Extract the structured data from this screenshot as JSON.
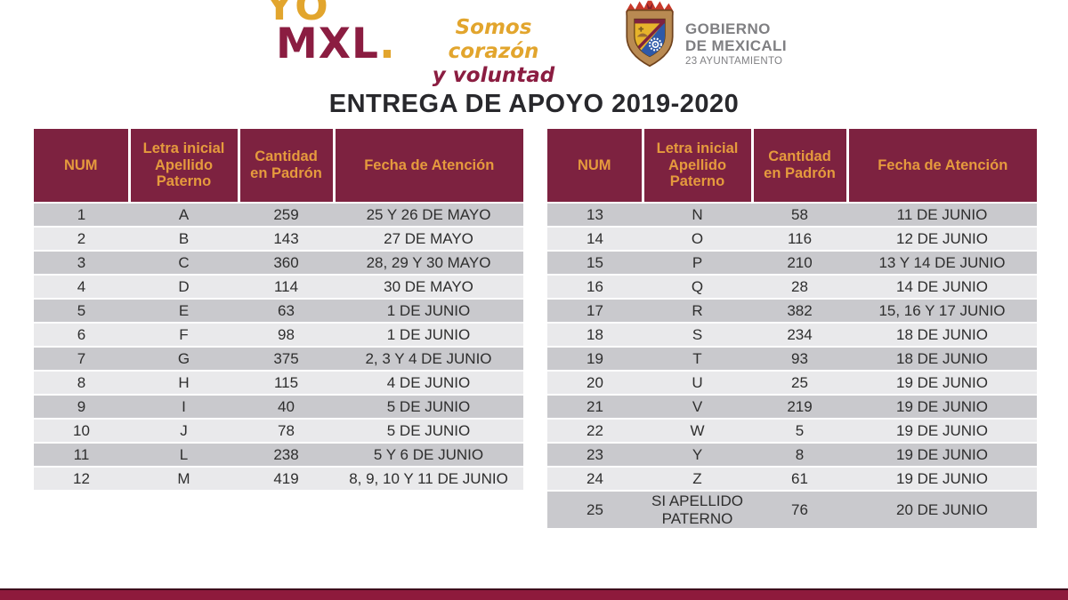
{
  "brand": {
    "yo": "YO",
    "mxl": "MXL",
    "dot": ".",
    "slogan_line1": "Somos corazón",
    "slogan_line2": "y voluntad"
  },
  "government": {
    "line1": "GOBIERNO",
    "line2": "DE MEXICALI",
    "line3": "23 AYUNTAMIENTO"
  },
  "icons": {
    "crest": "mexicali-coat-of-arms"
  },
  "title": "ENTREGA DE APOYO 2019-2020",
  "table_columns": [
    "NUM",
    "Letra inicial Apellido Paterno",
    "Cantidad en Padrón",
    "Fecha de Atención"
  ],
  "left_table_rows": [
    {
      "num": "1",
      "letra": "A",
      "cantidad": "259",
      "fecha": "25 Y 26 DE MAYO"
    },
    {
      "num": "2",
      "letra": "B",
      "cantidad": "143",
      "fecha": "27 DE MAYO"
    },
    {
      "num": "3",
      "letra": "C",
      "cantidad": "360",
      "fecha": "28, 29 Y 30 MAYO"
    },
    {
      "num": "4",
      "letra": "D",
      "cantidad": "114",
      "fecha": "30 DE MAYO"
    },
    {
      "num": "5",
      "letra": "E",
      "cantidad": "63",
      "fecha": "1 DE JUNIO"
    },
    {
      "num": "6",
      "letra": "F",
      "cantidad": "98",
      "fecha": "1 DE JUNIO"
    },
    {
      "num": "7",
      "letra": "G",
      "cantidad": "375",
      "fecha": "2, 3 Y 4 DE JUNIO"
    },
    {
      "num": "8",
      "letra": "H",
      "cantidad": "115",
      "fecha": "4 DE JUNIO"
    },
    {
      "num": "9",
      "letra": "I",
      "cantidad": "40",
      "fecha": "5 DE JUNIO"
    },
    {
      "num": "10",
      "letra": "J",
      "cantidad": "78",
      "fecha": "5 DE JUNIO"
    },
    {
      "num": "11",
      "letra": "L",
      "cantidad": "238",
      "fecha": "5 Y 6 DE JUNIO"
    },
    {
      "num": "12",
      "letra": "M",
      "cantidad": "419",
      "fecha": "8, 9, 10 Y 11 DE JUNIO"
    }
  ],
  "right_table_rows": [
    {
      "num": "13",
      "letra": "N",
      "cantidad": "58",
      "fecha": "11 DE JUNIO"
    },
    {
      "num": "14",
      "letra": "O",
      "cantidad": "116",
      "fecha": "12 DE JUNIO"
    },
    {
      "num": "15",
      "letra": "P",
      "cantidad": "210",
      "fecha": "13 Y 14 DE JUNIO"
    },
    {
      "num": "16",
      "letra": "Q",
      "cantidad": "28",
      "fecha": "14 DE JUNIO"
    },
    {
      "num": "17",
      "letra": "R",
      "cantidad": "382",
      "fecha": "15, 16 Y 17 JUNIO"
    },
    {
      "num": "18",
      "letra": "S",
      "cantidad": "234",
      "fecha": "18 DE JUNIO"
    },
    {
      "num": "19",
      "letra": "T",
      "cantidad": "93",
      "fecha": "18 DE JUNIO"
    },
    {
      "num": "20",
      "letra": "U",
      "cantidad": "25",
      "fecha": "19 DE JUNIO"
    },
    {
      "num": "21",
      "letra": "V",
      "cantidad": "219",
      "fecha": "19 DE JUNIO"
    },
    {
      "num": "22",
      "letra": "W",
      "cantidad": "5",
      "fecha": "19 DE JUNIO"
    },
    {
      "num": "23",
      "letra": "Y",
      "cantidad": "8",
      "fecha": "19 DE JUNIO"
    },
    {
      "num": "24",
      "letra": "Z",
      "cantidad": "61",
      "fecha": "19 DE JUNIO"
    },
    {
      "num": "25",
      "letra": "SI APELLIDO PATERNO",
      "cantidad": "76",
      "fecha": "20 DE JUNIO"
    }
  ],
  "colors": {
    "maroon_header": "#7d2240",
    "gold_text": "#e59a3d",
    "footer_crimson": "#8e1a3c",
    "row_dark": "#c9c9cd",
    "row_light": "#e9e9eb",
    "brand_gold": "#e2a52d",
    "brand_maroon": "#8b1d41",
    "gov_gray": "#7f7f82",
    "title_dark": "#28282c"
  }
}
